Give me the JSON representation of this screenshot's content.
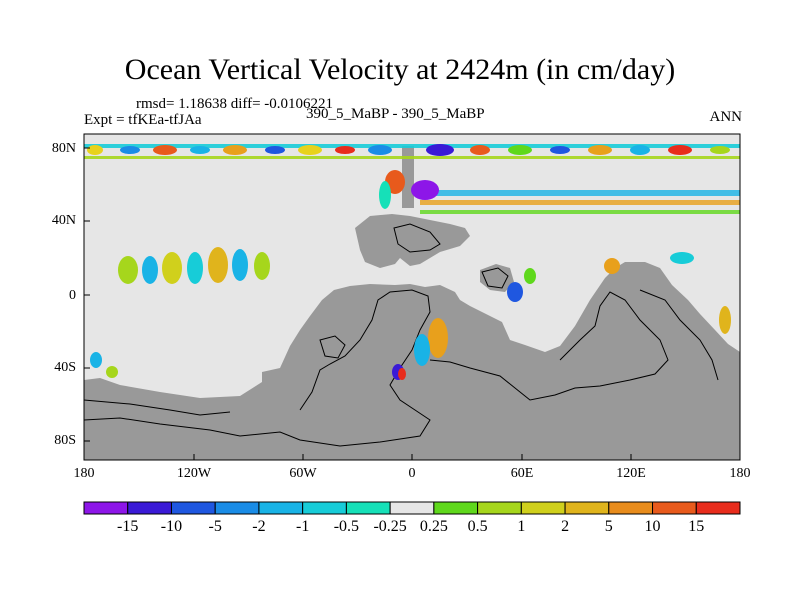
{
  "title": "Ocean Vertical Velocity at 2424m (in cm/day)",
  "stats": {
    "rmsd_line": "rmsd= 1.18638 diff= -0.0106221",
    "expt_line": "Expt = tfKEa-tfJAa",
    "cases_line": "390_5_MaBP - 390_5_MaBP",
    "season": "ANN"
  },
  "axes": {
    "y_ticks": [
      "80N",
      "40N",
      "0",
      "40S",
      "80S"
    ],
    "x_ticks": [
      "180",
      "120W",
      "60W",
      "0",
      "60E",
      "120E",
      "180"
    ]
  },
  "colorbar": {
    "labels": [
      "-15",
      "-10",
      "-5",
      "-2",
      "-1",
      "-0.5",
      "-0.25",
      "0.25",
      "0.5",
      "1",
      "2",
      "5",
      "10",
      "15"
    ],
    "colors": [
      "#8d16e8",
      "#3a1ad6",
      "#1f57e0",
      "#1a8ce6",
      "#19b3e6",
      "#17ccd8",
      "#16e0b8",
      "#e6e6e6",
      "#5fd81c",
      "#a6d61c",
      "#d0d01c",
      "#e0b41c",
      "#e88c1c",
      "#e85a1c",
      "#e82c1c"
    ]
  },
  "colors": {
    "land": "#999999",
    "zero_band": "#e6e6e6"
  }
}
